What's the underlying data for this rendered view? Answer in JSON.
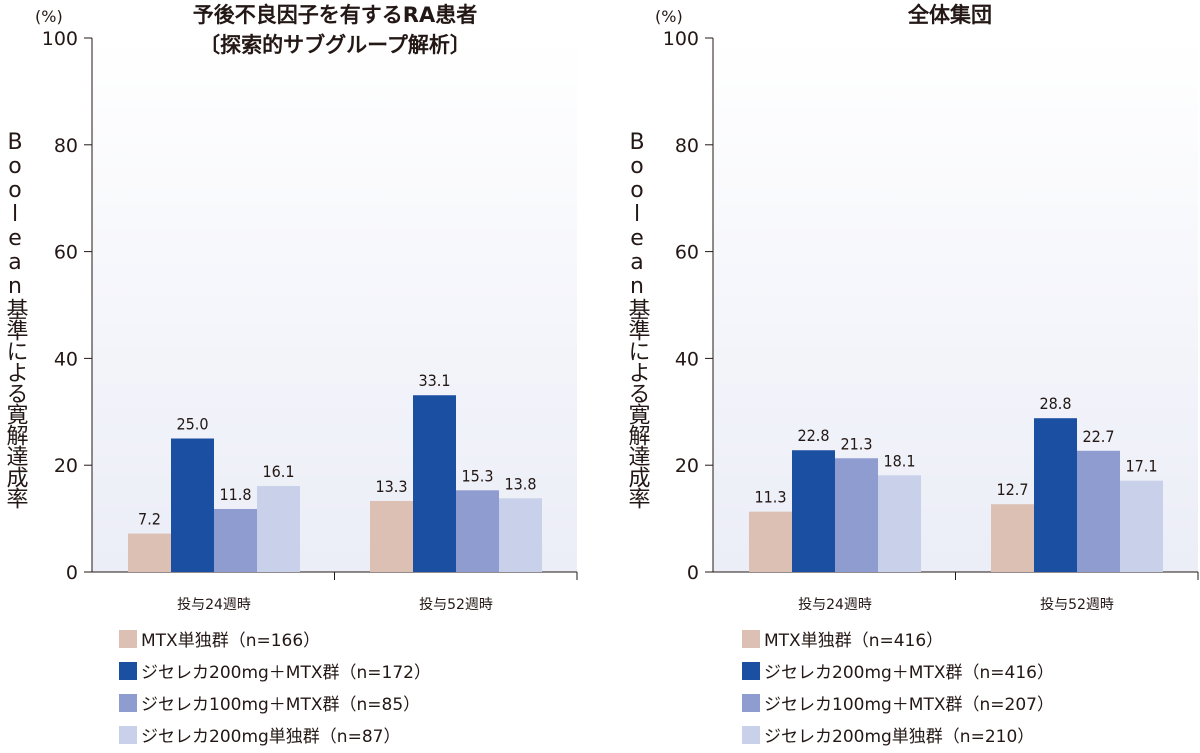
{
  "chart_data": [
    {
      "type": "bar",
      "title": "予後不良因子を有するRA患者",
      "subtitle": "〔探索的サブグループ解析〕",
      "unit": "(%)",
      "ylabel": "Boolean基準による寛解達成率",
      "ylim": [
        0,
        100
      ],
      "yticks": [
        "0",
        "20",
        "40",
        "60",
        "80",
        "100"
      ],
      "categories": [
        "投与24週時",
        "投与52週時"
      ],
      "series": [
        {
          "name": "MTX単独群（n=166）",
          "values": [
            7.2,
            13.3
          ],
          "labels": [
            "7.2",
            "13.3"
          ]
        },
        {
          "name": "ジセレカ200mg＋MTX群（n=172）",
          "values": [
            25.0,
            33.1
          ],
          "labels": [
            "25.0",
            "33.1"
          ]
        },
        {
          "name": "ジセレカ100mg＋MTX群（n=85）",
          "values": [
            11.8,
            15.3
          ],
          "labels": [
            "11.8",
            "15.3"
          ]
        },
        {
          "name": "ジセレカ200mg単独群（n=87）",
          "values": [
            16.1,
            13.8
          ],
          "labels": [
            "16.1",
            "13.8"
          ]
        }
      ],
      "grid": false,
      "legend": "bottom"
    },
    {
      "type": "bar",
      "title": "全体集団",
      "subtitle": "",
      "unit": "(%)",
      "ylabel": "Boolean基準による寛解達成率",
      "ylim": [
        0,
        100
      ],
      "yticks": [
        "0",
        "20",
        "40",
        "60",
        "80",
        "100"
      ],
      "categories": [
        "投与24週時",
        "投与52週時"
      ],
      "series": [
        {
          "name": "MTX単独群（n=416）",
          "values": [
            11.3,
            12.7
          ],
          "labels": [
            "11.3",
            "12.7"
          ]
        },
        {
          "name": "ジセレカ200mg＋MTX群（n=416）",
          "values": [
            22.8,
            28.8
          ],
          "labels": [
            "22.8",
            "28.8"
          ]
        },
        {
          "name": "ジセレカ100mg＋MTX群（n=207）",
          "values": [
            21.3,
            22.7
          ],
          "labels": [
            "21.3",
            "22.7"
          ]
        },
        {
          "name": "ジセレカ200mg単独群（n=210）",
          "values": [
            18.1,
            17.1
          ],
          "labels": [
            "18.1",
            "17.1"
          ]
        }
      ],
      "grid": false,
      "legend": "bottom"
    }
  ],
  "colors": {
    "series": [
      "#dcc0b4",
      "#1a4fa1",
      "#8f9ccf",
      "#c9d0ea"
    ],
    "background_gradient_top": "#ffffff",
    "background_gradient_bottom": "#ebedf7",
    "axis": "#231815",
    "text": "#231815"
  }
}
